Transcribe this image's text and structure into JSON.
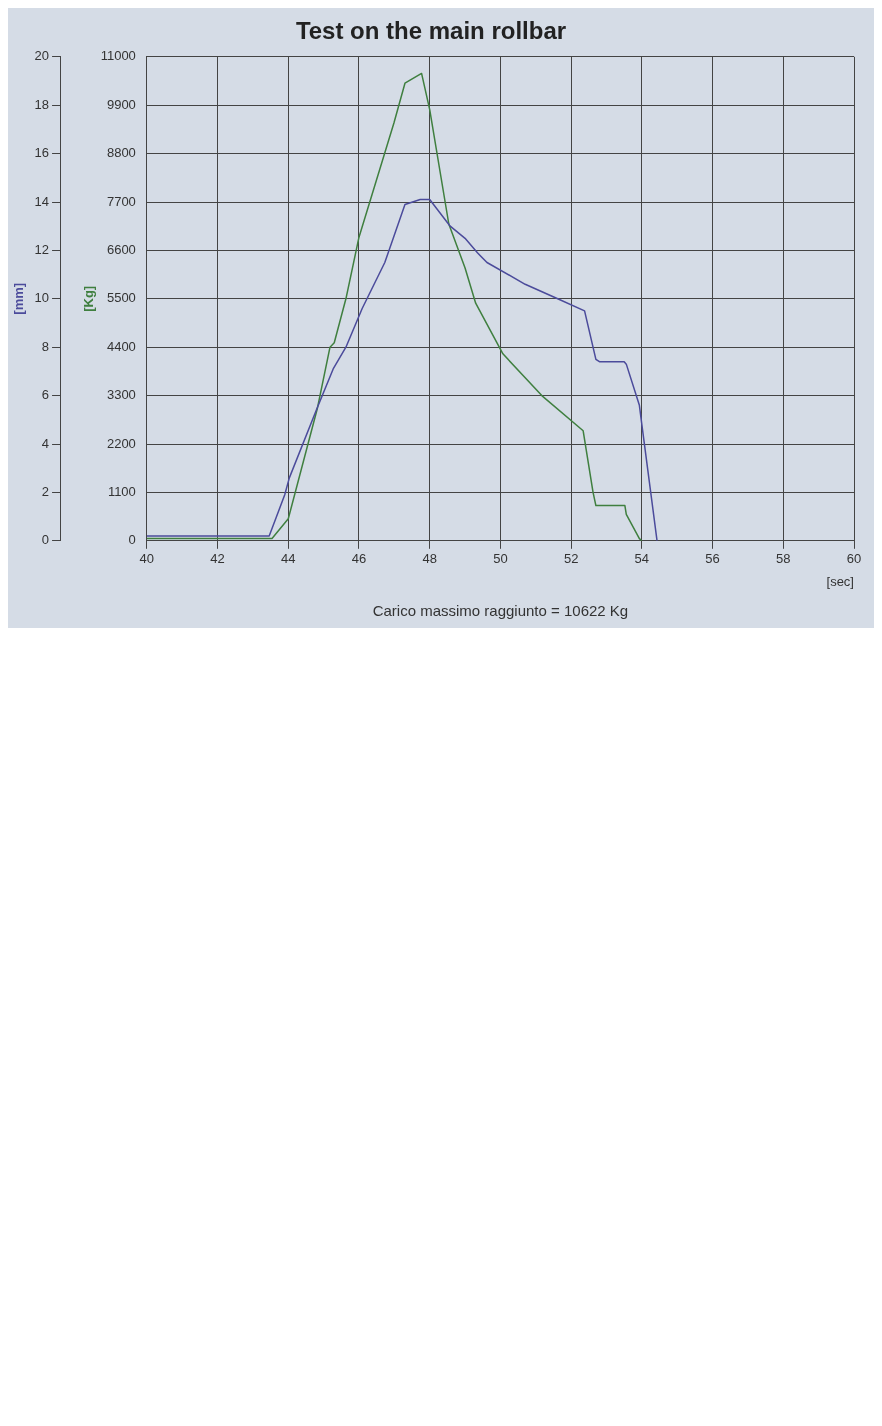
{
  "chart_data": {
    "type": "line",
    "title": "Test on the main rollbar",
    "xlabel": "[sec]",
    "ylabel": "[mm]",
    "y2label": "[Kg]",
    "annotations": [
      "Carico massimo raggiunto = 10622 Kg"
    ],
    "series": [
      {
        "color": "#4b4b9b",
        "x": [
          40,
          41,
          42,
          43,
          43.46,
          43.9,
          44.03,
          44.82,
          45.27,
          45.63,
          46.09,
          46.73,
          47.3,
          47.73,
          48.0,
          48.58,
          49.0,
          49.35,
          49.62,
          50.7,
          51.62,
          52.38,
          52.7,
          52.8,
          53.5,
          53.56,
          53.93,
          54.0,
          54.43
        ],
        "values": [
          0.2,
          0.2,
          0.2,
          0.2,
          0.2,
          1.9,
          2.6,
          5.5,
          7.1,
          8.0,
          9.6,
          11.5,
          13.9,
          14.1,
          14.1,
          13.0,
          12.5,
          11.9,
          11.5,
          10.6,
          10.0,
          9.5,
          7.5,
          7.4,
          7.4,
          7.3,
          5.6,
          4.8,
          0
        ]
      },
      {
        "color": "#3f7f3f",
        "axis": "y2",
        "x": [
          40,
          42,
          43,
          43.54,
          44.0,
          44.82,
          45.18,
          45.3,
          45.63,
          46.0,
          46.99,
          47.3,
          47.77,
          48.0,
          48.54,
          49.0,
          49.3,
          50.07,
          51.17,
          52.34,
          52.62,
          52.7,
          53.52,
          53.56,
          53.93,
          54.0
        ],
        "values": [
          50,
          50,
          50,
          50,
          500,
          3000,
          4400,
          4500,
          5500,
          6900,
          9500,
          10400,
          10622,
          9800,
          7200,
          6200,
          5400,
          4250,
          3300,
          2500,
          1100,
          800,
          800,
          600,
          50,
          0
        ]
      }
    ],
    "xlim": [
      40,
      60
    ],
    "xticks": [
      40,
      42,
      44,
      46,
      48,
      50,
      52,
      54,
      56,
      58,
      60
    ],
    "ylim": [
      0,
      20
    ],
    "yticks": [
      0,
      2,
      4,
      6,
      8,
      10,
      12,
      14,
      16,
      18,
      20
    ],
    "y2lim": [
      0,
      11000
    ],
    "y2ticks": [
      0,
      1100,
      2200,
      3300,
      4400,
      5500,
      6600,
      7700,
      8800,
      9900,
      11000
    ],
    "grid": true,
    "legend": false,
    "marker": "none",
    "line_style": "solid"
  }
}
